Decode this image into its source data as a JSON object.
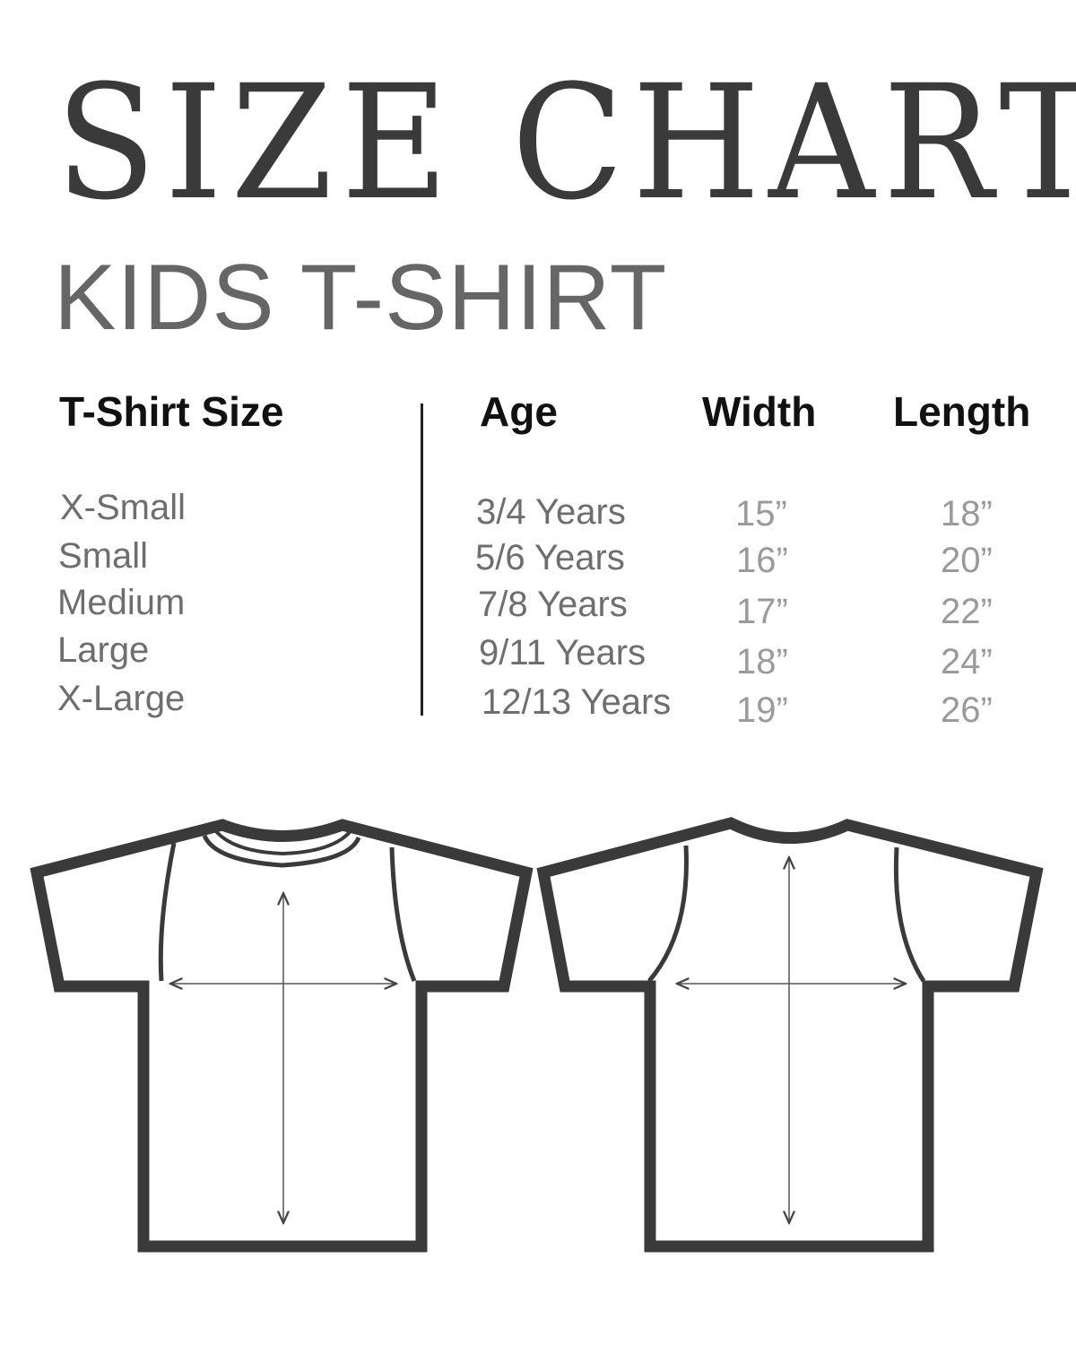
{
  "title": "SIZE CHART",
  "subtitle": "KIDS T-SHIRT",
  "table": {
    "headers": {
      "size": "T-Shirt Size",
      "age": "Age",
      "width": "Width",
      "length": "Length"
    },
    "rows": [
      {
        "size": "X-Small",
        "age": "3/4 Years",
        "width": "15”",
        "length": "18”"
      },
      {
        "size": "Small",
        "age": "5/6 Years",
        "width": "16”",
        "length": "20”"
      },
      {
        "size": "Medium",
        "age": "7/8 Years",
        "width": "17”",
        "length": "22”"
      },
      {
        "size": "Large",
        "age": "9/11 Years",
        "width": "18”",
        "length": "24”"
      },
      {
        "size": "X-Large",
        "age": "12/13 Years",
        "width": "19”",
        "length": "26”"
      }
    ]
  },
  "colors": {
    "title": "#3a3a3a",
    "subtitle": "#666666",
    "outline": "#3a3a3a",
    "measure_text": "#9a9a9a"
  }
}
